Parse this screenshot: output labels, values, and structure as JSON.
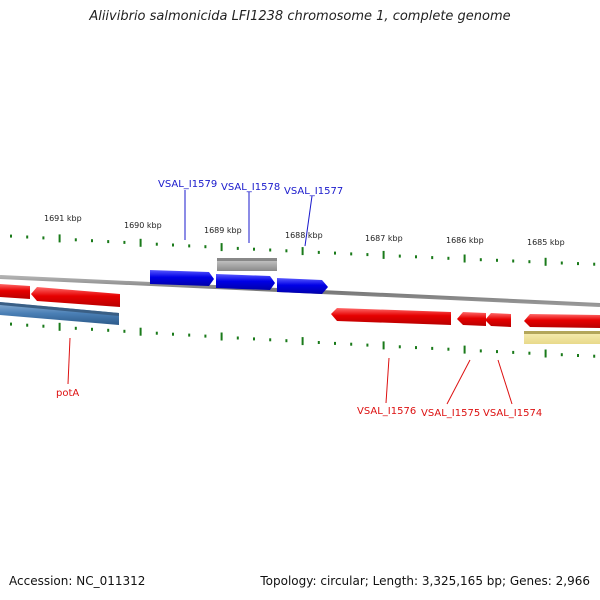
{
  "title": "Aliivibrio salmonicida LFI1238 chromosome 1, complete genome",
  "footer": {
    "accession": "Accession: NC_011312",
    "topology": "Topology: circular; Length: 3,325,165 bp; Genes: 2,966"
  },
  "ticks": [
    "1691 kbp",
    "1690 kbp",
    "1689 kbp",
    "1688 kbp",
    "1687 kbp",
    "1686 kbp",
    "1685 kbp"
  ],
  "genes_top": [
    "VSAL_I1579",
    "VSAL_I1578",
    "VSAL_I1577"
  ],
  "genes_bottom": [
    "potA",
    "VSAL_I1576",
    "VSAL_I1575",
    "VSAL_I1574"
  ],
  "colors": {
    "forward": "#0000ee",
    "reverse": "#ee0000",
    "label_top": "#1a1acc",
    "label_bottom": "#dd1111",
    "tick": "#1a7a1a",
    "track": "#888888",
    "misc_gray": "#aaaaaa",
    "misc_blue": "#4477aa",
    "misc_yellow": "#eedd88"
  }
}
